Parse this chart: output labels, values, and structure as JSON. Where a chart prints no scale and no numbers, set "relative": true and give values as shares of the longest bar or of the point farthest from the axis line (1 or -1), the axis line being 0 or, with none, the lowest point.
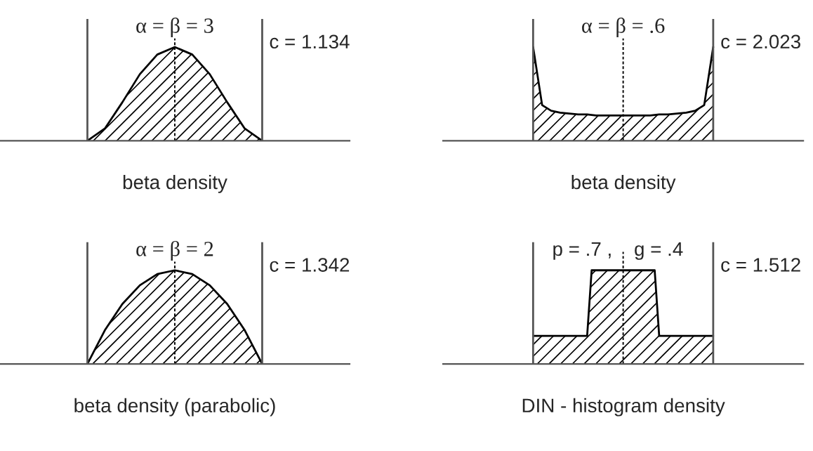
{
  "chart_data": [
    {
      "type": "area",
      "relative": true,
      "xlabel": "beta density",
      "annotations": [
        "α = β = 3",
        "c = 1.134"
      ],
      "categories": [
        null,
        null,
        null,
        null,
        null,
        null,
        null,
        null,
        null,
        null,
        null
      ],
      "series": [
        {
          "color": "#000000",
          "values": [
            0,
            0.13,
            0.41,
            0.71,
            0.92,
            1,
            0.92,
            0.71,
            0.41,
            0.13,
            0
          ]
        }
      ]
    },
    {
      "type": "area",
      "relative": true,
      "xlabel": "beta density",
      "annotations": [
        "α = β = .6",
        "c = 2.023"
      ],
      "categories": [
        null,
        null,
        null,
        null,
        null,
        null,
        null,
        null,
        null,
        null,
        null,
        null,
        null,
        null,
        null,
        null,
        null,
        null,
        null,
        null,
        null
      ],
      "series": [
        {
          "color": "#000000",
          "values": [
            1,
            0.38,
            0.32,
            0.3,
            0.29,
            0.28,
            0.28,
            0.27,
            0.27,
            0.27,
            0.27,
            0.27,
            0.27,
            0.27,
            0.28,
            0.28,
            0.29,
            0.3,
            0.32,
            0.38,
            1
          ]
        }
      ]
    },
    {
      "type": "area",
      "relative": true,
      "xlabel": "beta density (parabolic)",
      "annotations": [
        "α = β = 2",
        "c = 1.342"
      ],
      "categories": [
        null,
        null,
        null,
        null,
        null,
        null,
        null,
        null,
        null,
        null,
        null
      ],
      "series": [
        {
          "color": "#000000",
          "values": [
            0,
            0.36,
            0.64,
            0.84,
            0.96,
            1,
            0.96,
            0.84,
            0.64,
            0.36,
            0
          ]
        }
      ]
    },
    {
      "type": "area",
      "relative": true,
      "xlabel": "DIN - histogram density",
      "annotations": [
        "p = .7 ,",
        "g = .4",
        "c = 1.512"
      ],
      "categories": [
        null,
        null,
        null,
        null,
        null,
        null,
        null,
        null,
        null,
        null,
        null,
        null,
        null,
        null,
        null,
        null,
        null,
        null,
        null,
        null,
        null,
        null,
        null,
        null,
        null,
        null,
        null,
        null,
        null,
        null,
        null,
        null,
        null,
        null,
        null,
        null,
        null,
        null,
        null,
        null,
        null
      ],
      "series": [
        {
          "color": "#000000",
          "values": [
            0.3,
            0.3,
            0.3,
            0.3,
            0.3,
            0.3,
            0.3,
            0.3,
            0.3,
            0.3,
            0.3,
            0.3,
            0.3,
            1,
            1,
            1,
            1,
            1,
            1,
            1,
            1,
            1,
            1,
            1,
            1,
            1,
            1,
            1,
            0.3,
            0.3,
            0.3,
            0.3,
            0.3,
            0.3,
            0.3,
            0.3,
            0.3,
            0.3,
            0.3,
            0.3,
            0.3
          ]
        }
      ]
    }
  ]
}
